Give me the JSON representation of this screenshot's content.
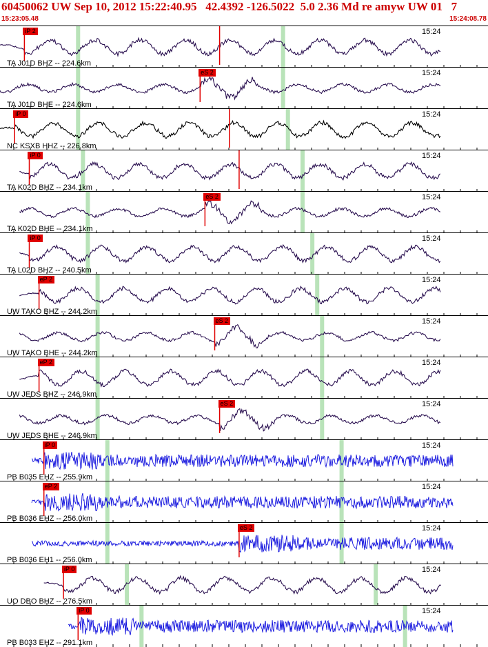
{
  "header": {
    "title": "60450062 UW Sep 10, 2012 15:22:40.95   42.4392 -126.5022  5.0 2.36 Md re amyw UW 01   7",
    "start_time": "15:23:05.48",
    "end_time": "15:24:08.78",
    "accent_color": "#cc0000"
  },
  "traces": [
    {
      "label": "TA J01D BHZ -- 224.6km",
      "time": "15:24",
      "color": "#2a1050",
      "pick": "iP 2",
      "pick_pos": 0.05,
      "s_pos": 0.45,
      "green": [
        0.16,
        0.58
      ],
      "style": "low",
      "start": 0.0
    },
    {
      "label": "TA J01D BHE -- 224.6km",
      "time": "15:24",
      "color": "#2a1050",
      "pick": "eS 2",
      "pick_pos": 0.41,
      "green": [
        0.16,
        0.58
      ],
      "style": "mid",
      "start": 0.0
    },
    {
      "label": "NC KSXB HHZ -- 226.8km",
      "time": "15:24",
      "color": "#000000",
      "pick": "iP 0",
      "pick_pos": 0.03,
      "s_pos": 0.47,
      "green": [
        0.16,
        0.59
      ],
      "style": "low",
      "start": 0.0
    },
    {
      "label": "TA K02D BHZ -- 234.1km",
      "time": "15:24",
      "color": "#2a1050",
      "pick": "iP 0",
      "pick_pos": 0.06,
      "s_pos": 0.49,
      "green": [
        0.17,
        0.62
      ],
      "style": "low",
      "start": 0.04
    },
    {
      "label": "TA K02D BHE -- 234.1km",
      "time": "15:24",
      "color": "#2a1050",
      "pick": "eS 2",
      "pick_pos": 0.42,
      "green": [
        0.18,
        0.62
      ],
      "style": "mid",
      "start": 0.04
    },
    {
      "label": "TA L02D BHZ -- 240.5km",
      "time": "15:24",
      "color": "#2a1050",
      "pick": "iP 0",
      "pick_pos": 0.06,
      "green": [
        0.18,
        0.64
      ],
      "style": "low",
      "start": 0.04
    },
    {
      "label": "UW TAKO BHZ -- 244.2km",
      "time": "15:24",
      "color": "#2a1050",
      "pick": "eP 2",
      "pick_pos": 0.08,
      "green": [
        0.2,
        0.65
      ],
      "style": "low",
      "start": 0.04
    },
    {
      "label": "UW TAKO BHE -- 244.2km",
      "time": "15:24",
      "color": "#2a1050",
      "pick": "eS 2",
      "pick_pos": 0.44,
      "green": [
        0.2,
        0.66
      ],
      "style": "mid",
      "start": 0.04
    },
    {
      "label": "UW JEDS BHZ -- 246.9km",
      "time": "15:24",
      "color": "#2a1050",
      "pick": "eP 2",
      "pick_pos": 0.08,
      "green": [
        0.2,
        0.66
      ],
      "style": "low",
      "start": 0.04
    },
    {
      "label": "UW JEDS BHE -- 246.9km",
      "time": "15:24",
      "color": "#2a1050",
      "pick": "eS 2",
      "pick_pos": 0.45,
      "green": [
        0.2,
        0.66
      ],
      "style": "mid",
      "start": 0.04
    },
    {
      "label": "PB B035 EHZ -- 255.9km",
      "time": "15:24",
      "color": "#1010dd",
      "pick": "iP 0",
      "pick_pos": 0.09,
      "green": [
        0.22,
        0.7
      ],
      "style": "hf",
      "start": 0.065
    },
    {
      "label": "PB B036 EHZ -- 256.0km",
      "time": "15:24",
      "color": "#1010dd",
      "pick": "eP 2",
      "pick_pos": 0.09,
      "green": [
        0.22,
        0.7
      ],
      "style": "hf",
      "start": 0.065
    },
    {
      "label": "PB B036 EH1 -- 256.0km",
      "time": "15:24",
      "color": "#1010dd",
      "pick": "eS 2",
      "pick_pos": 0.49,
      "green": [
        0.22,
        0.7
      ],
      "style": "hf",
      "start": 0.065
    },
    {
      "label": "UO DBO BHZ -- 276.5km",
      "time": "15:24",
      "color": "#2a1050",
      "pick": "iP 0",
      "pick_pos": 0.13,
      "green": [
        0.26,
        0.77
      ],
      "style": "low",
      "start": 0.09
    },
    {
      "label": "PB B033 EHZ -- 291.1km",
      "time": "15:24",
      "color": "#1010dd",
      "pick": "iP 0",
      "pick_pos": 0.16,
      "green": [
        0.29,
        0.83
      ],
      "style": "hf",
      "start": 0.14
    }
  ]
}
